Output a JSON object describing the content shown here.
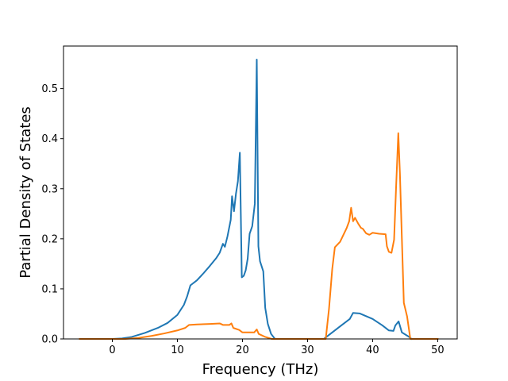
{
  "chart_data": {
    "type": "line",
    "title": "",
    "xlabel": "Frequency (THz)",
    "ylabel": "Partial Density of States",
    "xlim": [
      -7.5,
      53.0
    ],
    "ylim": [
      0.0,
      0.585
    ],
    "xticks": [
      0,
      10,
      20,
      30,
      40,
      50
    ],
    "yticks": [
      0.0,
      0.1,
      0.2,
      0.3,
      0.4,
      0.5
    ],
    "xtick_labels": [
      "0",
      "10",
      "20",
      "30",
      "40",
      "50"
    ],
    "ytick_labels": [
      "0.0",
      "0.1",
      "0.2",
      "0.3",
      "0.4",
      "0.5"
    ],
    "grid": false,
    "legend": "none",
    "series": [
      {
        "color": "#1f77b4",
        "points": [
          [
            -5,
            0
          ],
          [
            0,
            0
          ],
          [
            1.5,
            0.001
          ],
          [
            3,
            0.004
          ],
          [
            5,
            0.012
          ],
          [
            7,
            0.022
          ],
          [
            8.5,
            0.032
          ],
          [
            10,
            0.048
          ],
          [
            11,
            0.068
          ],
          [
            11.5,
            0.085
          ],
          [
            12,
            0.107
          ],
          [
            13,
            0.117
          ],
          [
            14,
            0.131
          ],
          [
            15,
            0.146
          ],
          [
            16,
            0.162
          ],
          [
            16.5,
            0.172
          ],
          [
            17,
            0.19
          ],
          [
            17.3,
            0.184
          ],
          [
            17.7,
            0.205
          ],
          [
            18.2,
            0.238
          ],
          [
            18.4,
            0.285
          ],
          [
            18.7,
            0.255
          ],
          [
            19,
            0.29
          ],
          [
            19.3,
            0.315
          ],
          [
            19.6,
            0.372
          ],
          [
            19.9,
            0.123
          ],
          [
            20.2,
            0.126
          ],
          [
            20.5,
            0.137
          ],
          [
            20.8,
            0.16
          ],
          [
            21.1,
            0.21
          ],
          [
            21.5,
            0.225
          ],
          [
            21.9,
            0.27
          ],
          [
            22.2,
            0.558
          ],
          [
            22.45,
            0.185
          ],
          [
            22.7,
            0.155
          ],
          [
            23.2,
            0.135
          ],
          [
            23.5,
            0.062
          ],
          [
            23.9,
            0.03
          ],
          [
            24.4,
            0.01
          ],
          [
            25,
            0
          ],
          [
            32.5,
            0
          ],
          [
            33.5,
            0.01
          ],
          [
            35,
            0.025
          ],
          [
            36.5,
            0.04
          ],
          [
            37,
            0.052
          ],
          [
            38,
            0.051
          ],
          [
            40,
            0.04
          ],
          [
            41.5,
            0.027
          ],
          [
            42.5,
            0.017
          ],
          [
            43.2,
            0.016
          ],
          [
            43.5,
            0.027
          ],
          [
            44,
            0.035
          ],
          [
            44.5,
            0.013
          ],
          [
            45.5,
            0.005
          ],
          [
            46,
            0
          ]
        ]
      },
      {
        "color": "#ff7f0e",
        "points": [
          [
            -5,
            0
          ],
          [
            2,
            0
          ],
          [
            4,
            0.002
          ],
          [
            6,
            0.006
          ],
          [
            8,
            0.011
          ],
          [
            10,
            0.017
          ],
          [
            11.2,
            0.022
          ],
          [
            11.8,
            0.028
          ],
          [
            13,
            0.029
          ],
          [
            15,
            0.03
          ],
          [
            16.5,
            0.031
          ],
          [
            17,
            0.028
          ],
          [
            18,
            0.028
          ],
          [
            18.3,
            0.031
          ],
          [
            18.6,
            0.022
          ],
          [
            19.5,
            0.018
          ],
          [
            20,
            0.013
          ],
          [
            21.8,
            0.013
          ],
          [
            22.2,
            0.019
          ],
          [
            22.5,
            0.01
          ],
          [
            23.5,
            0.004
          ],
          [
            24.5,
            0
          ],
          [
            32.8,
            0
          ],
          [
            33.3,
            0.06
          ],
          [
            33.8,
            0.14
          ],
          [
            34.2,
            0.183
          ],
          [
            35,
            0.194
          ],
          [
            36,
            0.221
          ],
          [
            36.4,
            0.235
          ],
          [
            36.7,
            0.262
          ],
          [
            37,
            0.235
          ],
          [
            37.3,
            0.242
          ],
          [
            37.8,
            0.23
          ],
          [
            38.2,
            0.222
          ],
          [
            38.5,
            0.22
          ],
          [
            39,
            0.211
          ],
          [
            39.5,
            0.208
          ],
          [
            40,
            0.212
          ],
          [
            41,
            0.21
          ],
          [
            42,
            0.209
          ],
          [
            42.2,
            0.185
          ],
          [
            42.5,
            0.174
          ],
          [
            42.9,
            0.172
          ],
          [
            43.3,
            0.198
          ],
          [
            43.6,
            0.3
          ],
          [
            43.95,
            0.411
          ],
          [
            44.2,
            0.33
          ],
          [
            44.5,
            0.2
          ],
          [
            44.8,
            0.072
          ],
          [
            45.3,
            0.045
          ],
          [
            45.8,
            0
          ],
          [
            50,
            0
          ]
        ]
      }
    ]
  }
}
